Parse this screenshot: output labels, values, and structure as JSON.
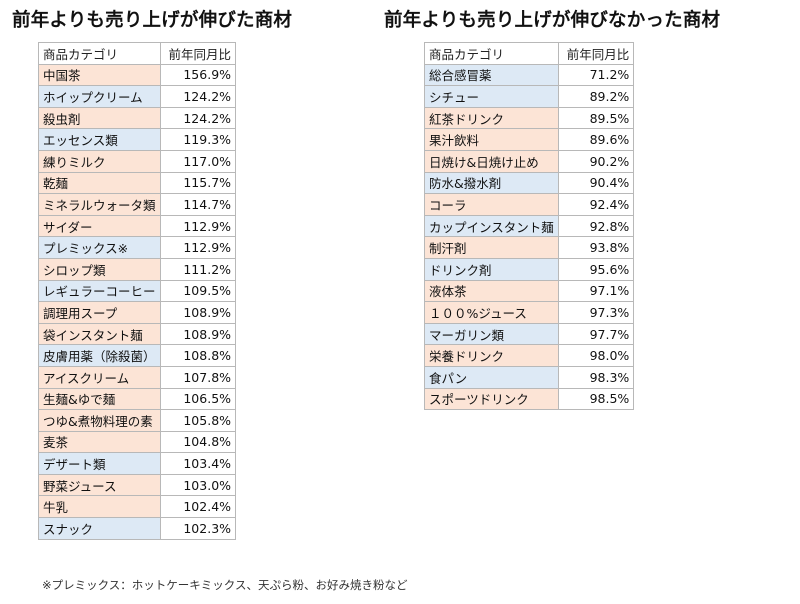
{
  "left": {
    "title": "前年よりも売り上げが伸びた商材",
    "header": {
      "category": "商品カテゴリ",
      "value": "前年同月比"
    },
    "rows": [
      {
        "category": "中国茶",
        "value": "156.9%",
        "color": "orange"
      },
      {
        "category": "ホイップクリーム",
        "value": "124.2%",
        "color": "blue"
      },
      {
        "category": "殺虫剤",
        "value": "124.2%",
        "color": "orange"
      },
      {
        "category": "エッセンス類",
        "value": "119.3%",
        "color": "blue"
      },
      {
        "category": "練りミルク",
        "value": "117.0%",
        "color": "orange"
      },
      {
        "category": "乾麺",
        "value": "115.7%",
        "color": "orange"
      },
      {
        "category": "ミネラルウォータ類",
        "value": "114.7%",
        "color": "orange"
      },
      {
        "category": "サイダー",
        "value": "112.9%",
        "color": "orange"
      },
      {
        "category": "プレミックス※",
        "value": "112.9%",
        "color": "blue"
      },
      {
        "category": "シロップ類",
        "value": "111.2%",
        "color": "orange"
      },
      {
        "category": "レギュラーコーヒー",
        "value": "109.5%",
        "color": "blue"
      },
      {
        "category": "調理用スープ",
        "value": "108.9%",
        "color": "orange"
      },
      {
        "category": "袋インスタント麺",
        "value": "108.9%",
        "color": "orange"
      },
      {
        "category": "皮膚用薬（除殺菌）",
        "value": "108.8%",
        "color": "blue"
      },
      {
        "category": "アイスクリーム",
        "value": "107.8%",
        "color": "orange"
      },
      {
        "category": "生麺&ゆで麺",
        "value": "106.5%",
        "color": "orange"
      },
      {
        "category": "つゆ&煮物料理の素",
        "value": "105.8%",
        "color": "orange"
      },
      {
        "category": "麦茶",
        "value": "104.8%",
        "color": "orange"
      },
      {
        "category": "デザート類",
        "value": "103.4%",
        "color": "blue"
      },
      {
        "category": "野菜ジュース",
        "value": "103.0%",
        "color": "orange"
      },
      {
        "category": "牛乳",
        "value": "102.4%",
        "color": "orange"
      },
      {
        "category": "スナック",
        "value": "102.3%",
        "color": "blue"
      }
    ]
  },
  "right": {
    "title": "前年よりも売り上げが伸びなかった商材",
    "header": {
      "category": "商品カテゴリ",
      "value": "前年同月比"
    },
    "rows": [
      {
        "category": "総合感冒薬",
        "value": "71.2%",
        "color": "blue"
      },
      {
        "category": "シチュー",
        "value": "89.2%",
        "color": "blue"
      },
      {
        "category": "紅茶ドリンク",
        "value": "89.5%",
        "color": "orange"
      },
      {
        "category": "果汁飲料",
        "value": "89.6%",
        "color": "orange"
      },
      {
        "category": "日焼け&日焼け止め",
        "value": "90.2%",
        "color": "orange"
      },
      {
        "category": "防水&撥水剤",
        "value": "90.4%",
        "color": "blue"
      },
      {
        "category": "コーラ",
        "value": "92.4%",
        "color": "orange"
      },
      {
        "category": "カップインスタント麺",
        "value": "92.8%",
        "color": "blue"
      },
      {
        "category": "制汗剤",
        "value": "93.8%",
        "color": "orange"
      },
      {
        "category": "ドリンク剤",
        "value": "95.6%",
        "color": "blue"
      },
      {
        "category": "液体茶",
        "value": "97.1%",
        "color": "orange"
      },
      {
        "category": "１００%ジュース",
        "value": "97.3%",
        "color": "orange"
      },
      {
        "category": "マーガリン類",
        "value": "97.7%",
        "color": "blue"
      },
      {
        "category": "栄養ドリンク",
        "value": "98.0%",
        "color": "orange"
      },
      {
        "category": "食パン",
        "value": "98.3%",
        "color": "blue"
      },
      {
        "category": "スポーツドリンク",
        "value": "98.5%",
        "color": "orange"
      }
    ]
  },
  "footnote": "※プレミックス：ホットケーキミックス、天ぷら粉、お好み焼き粉など"
}
